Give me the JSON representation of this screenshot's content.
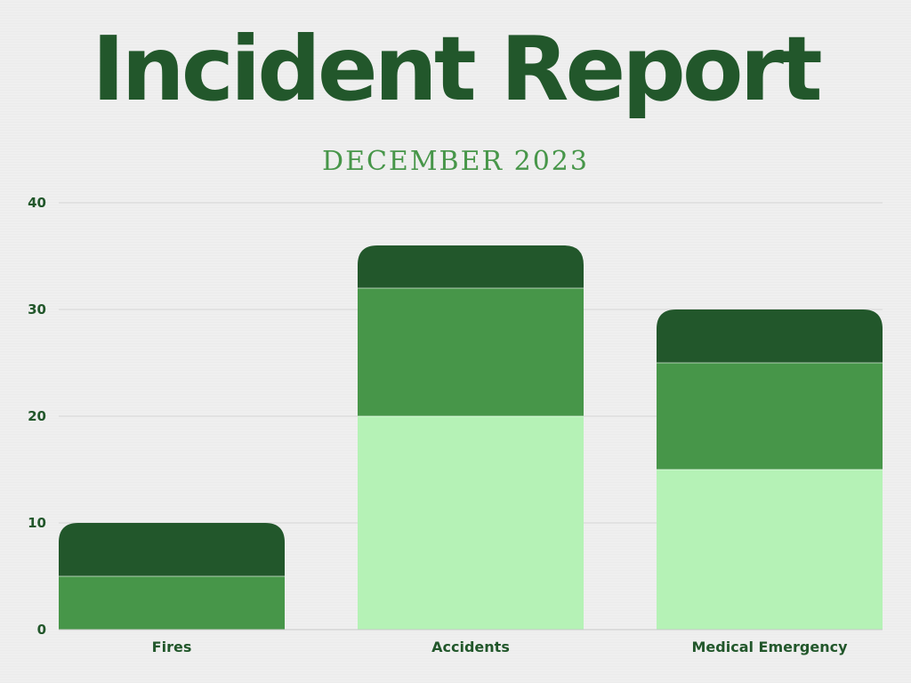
{
  "title": "Incident Report",
  "subtitle": "DECEMBER 2023",
  "colors": {
    "title": "#22572b",
    "subtitle": "#479649",
    "series_bottom": "#b5f2b6",
    "series_middle": "#479649",
    "series_top": "#22572b",
    "grid": "#d6d6d6"
  },
  "chart_data": {
    "type": "bar",
    "stacked": true,
    "categories": [
      "Fires",
      "Accidents",
      "Medical Emergency"
    ],
    "series": [
      {
        "values": [
          0,
          20,
          15
        ],
        "color": "#b5f2b6"
      },
      {
        "values": [
          5,
          12,
          10
        ],
        "color": "#479649"
      },
      {
        "values": [
          5,
          4,
          5
        ],
        "color": "#22572b"
      }
    ],
    "ylim": [
      0,
      40
    ],
    "yticks": [
      0,
      10,
      20,
      30,
      40
    ],
    "grid": true,
    "legend": "none"
  }
}
